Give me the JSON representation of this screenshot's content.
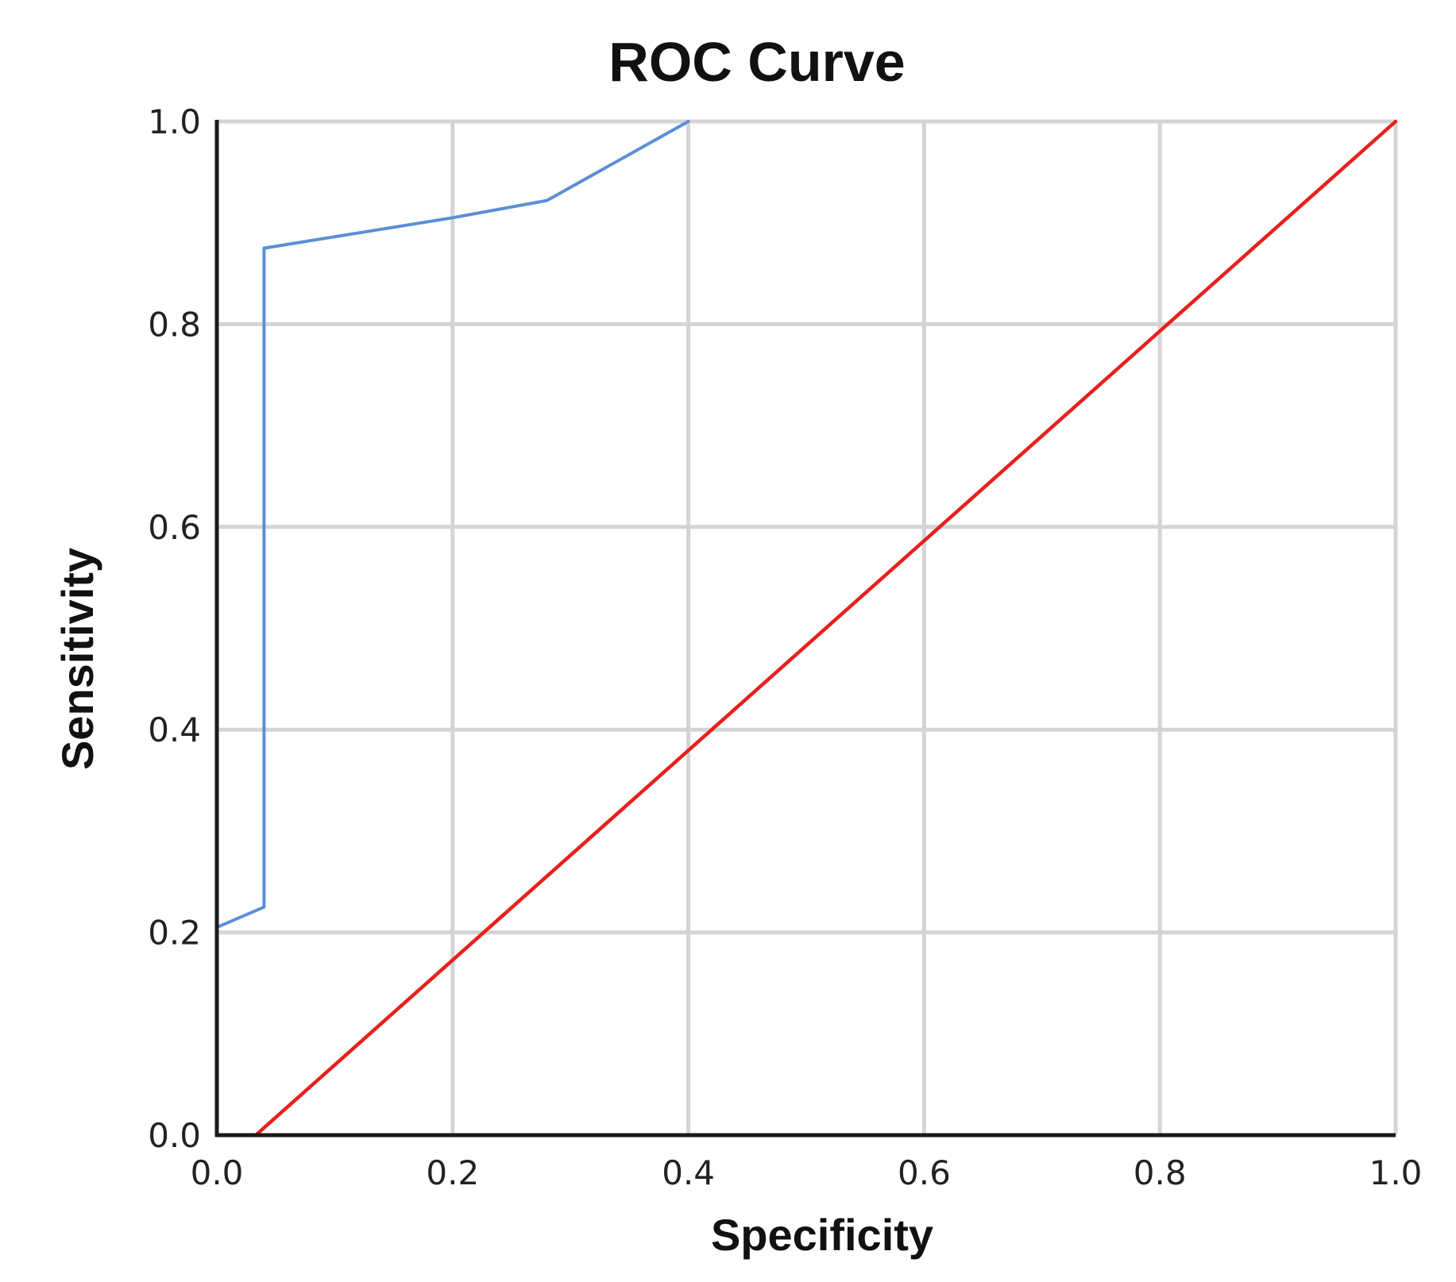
{
  "chart_data": {
    "type": "line",
    "title": "ROC Curve",
    "xlabel": "Specificity",
    "ylabel": "Sensitivity",
    "xlim": [
      0,
      1
    ],
    "ylim": [
      0,
      1
    ],
    "xticks": [
      "0.0",
      "0.2",
      "0.4",
      "0.6",
      "0.8",
      "1.0"
    ],
    "yticks": [
      "0.0",
      "0.2",
      "0.4",
      "0.6",
      "0.8",
      "1.0"
    ],
    "grid": true,
    "legend": "none",
    "series": [
      {
        "color": "#5b8fd6",
        "points": [
          [
            0.0,
            0.205
          ],
          [
            0.04,
            0.225
          ],
          [
            0.04,
            0.875
          ],
          [
            0.2,
            0.905
          ],
          [
            0.28,
            0.922
          ],
          [
            0.4,
            1.0
          ]
        ]
      },
      {
        "color": "#e8201c",
        "points": [
          [
            0.033,
            0.0
          ],
          [
            1.0,
            1.0
          ]
        ]
      }
    ]
  }
}
